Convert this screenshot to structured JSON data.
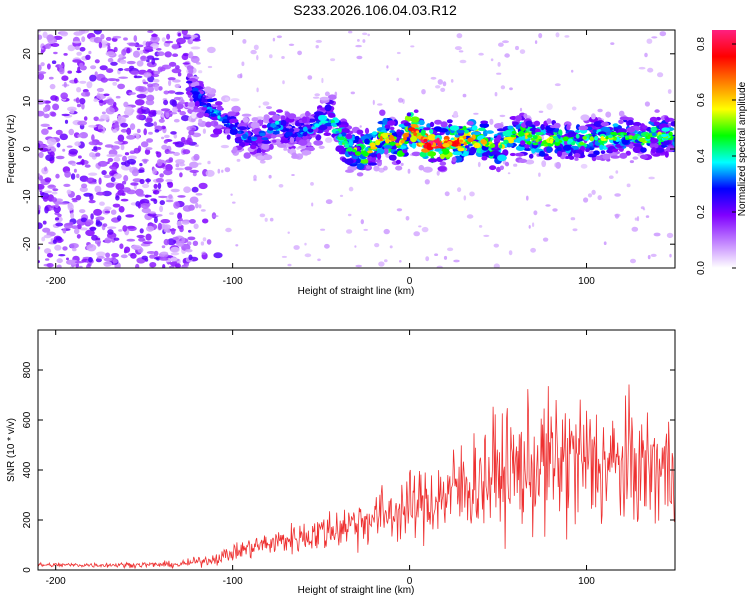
{
  "figure_title": "S233.2026.106.04.03.R12",
  "chart_data": [
    {
      "type": "heatmap",
      "title": "",
      "xlabel": "Height of straight line (km)",
      "ylabel": "Frequency (Hz)",
      "xlim": [
        -210,
        150
      ],
      "ylim": [
        -25,
        25
      ],
      "x_ticks": [
        -200,
        -100,
        0,
        100
      ],
      "y_ticks": [
        -20,
        -10,
        0,
        10,
        20
      ],
      "colorbar": {
        "label": "Normalized spectral amplitude",
        "range": [
          0.0,
          0.85
        ],
        "ticks": [
          0.0,
          0.2,
          0.4,
          0.6,
          0.8
        ],
        "colors": [
          "#ffffff",
          "#c080ff",
          "#8000ff",
          "#0000ff",
          "#00ffff",
          "#00ff00",
          "#ffff00",
          "#ff8000",
          "#ff0000",
          "#ff2080"
        ]
      },
      "ridge": {
        "description": "dominant spectral ridge",
        "x": [
          -125,
          -115,
          -105,
          -95,
          -85,
          -75,
          -65,
          -55,
          -45,
          -35,
          -25,
          -15,
          -5,
          0,
          10,
          20,
          30,
          40,
          50,
          60,
          70,
          80,
          90,
          100,
          110,
          120,
          130,
          140,
          150
        ],
        "y": [
          14,
          9,
          6,
          3,
          2,
          5,
          3,
          4,
          7,
          0,
          -1,
          3,
          1,
          5,
          1,
          1,
          2,
          2,
          0,
          3,
          2,
          2,
          2,
          2,
          2,
          3,
          2,
          3,
          2
        ],
        "peak_amplitude": [
          0.2,
          0.3,
          0.3,
          0.3,
          0.25,
          0.3,
          0.25,
          0.3,
          0.35,
          0.4,
          0.5,
          0.55,
          0.5,
          0.6,
          0.7,
          0.65,
          0.6,
          0.55,
          0.45,
          0.5,
          0.45,
          0.45,
          0.4,
          0.4,
          0.45,
          0.4,
          0.4,
          0.45,
          0.35
        ]
      },
      "noise_region": {
        "x_range": [
          -210,
          -120
        ],
        "y_range": [
          -25,
          25
        ],
        "level": 0.15
      }
    },
    {
      "type": "line",
      "title": "",
      "xlabel": "Height of straight line (km)",
      "ylabel": "SNR (10 * v/v)",
      "xlim": [
        -210,
        150
      ],
      "ylim": [
        0,
        960
      ],
      "x_ticks": [
        -200,
        -100,
        0,
        100
      ],
      "y_ticks": [
        0,
        200,
        400,
        600,
        800
      ],
      "series": [
        {
          "name": "SNR",
          "color": "#ee3030",
          "envelope_x": [
            -210,
            -170,
            -130,
            -110,
            -90,
            -70,
            -50,
            -30,
            -10,
            10,
            30,
            50,
            70,
            90,
            110,
            130,
            150
          ],
          "envelope_mean": [
            20,
            20,
            22,
            45,
            90,
            120,
            150,
            190,
            230,
            270,
            330,
            390,
            410,
            440,
            420,
            410,
            400
          ],
          "envelope_spread": [
            12,
            14,
            18,
            35,
            60,
            80,
            110,
            140,
            170,
            210,
            280,
            330,
            360,
            420,
            360,
            340,
            320
          ]
        }
      ]
    }
  ]
}
